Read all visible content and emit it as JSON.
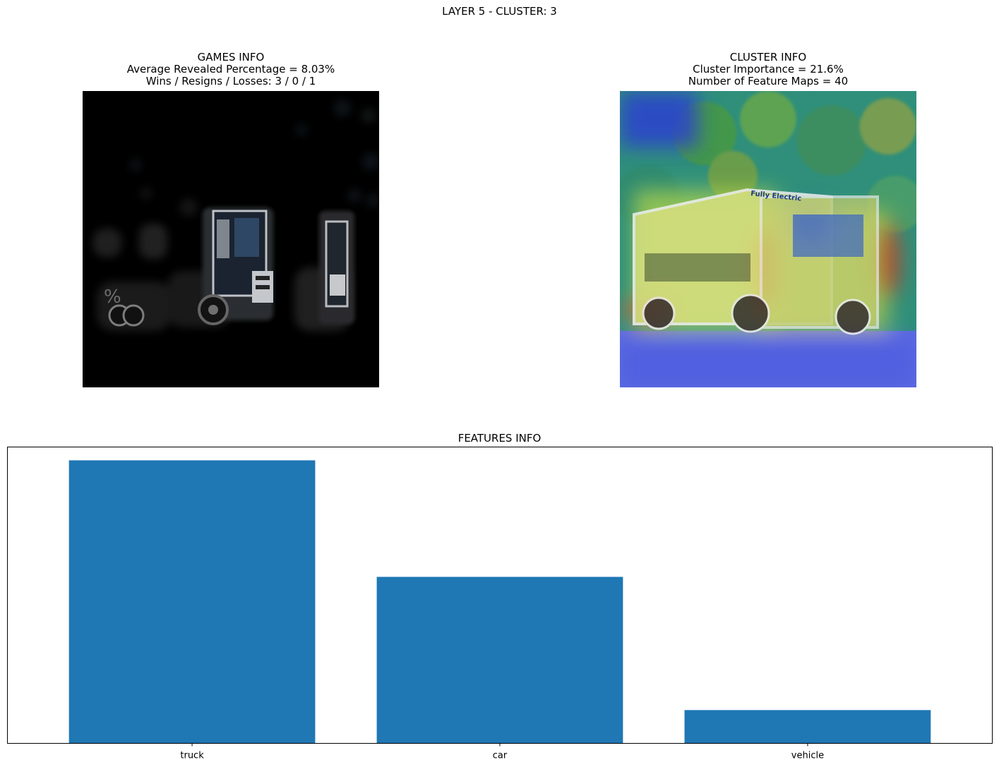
{
  "figure": {
    "suptitle": "LAYER 5 - CLUSTER: 3"
  },
  "games_info": {
    "title": "GAMES INFO",
    "line1": "Average Revealed Percentage = 8.03%",
    "line2": "Wins / Resigns / Losses: 3 / 0 / 1",
    "image_icon": "masked-truck-image"
  },
  "cluster_info": {
    "title": "CLUSTER INFO",
    "line1": "Cluster Importance = 21.6%",
    "line2": "Number of Feature Maps = 40",
    "image_icon": "truck-heatmap-image",
    "image_text": "Fully Electric"
  },
  "chart_data": {
    "type": "bar",
    "title": "FEATURES INFO",
    "categories": [
      "truck",
      "car",
      "vehicle"
    ],
    "values": [
      0.85,
      0.5,
      0.1
    ],
    "ylim": [
      0,
      0.89
    ],
    "xlabel": "",
    "ylabel": "",
    "grid": false,
    "bar_color": "#1f77b4",
    "y_ticks_visible": false
  }
}
